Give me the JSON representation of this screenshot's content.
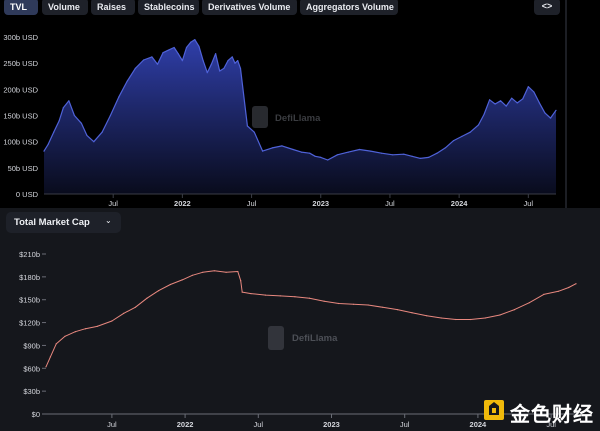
{
  "tabs": [
    {
      "label": "TVL",
      "active": true
    },
    {
      "label": "Volume",
      "active": false
    },
    {
      "label": "Raises",
      "active": false
    },
    {
      "label": "Stablecoins",
      "active": false
    },
    {
      "label": "Derivatives Volume",
      "active": false
    },
    {
      "label": "Aggregators Volume",
      "active": false
    }
  ],
  "embed_label": "<>",
  "dropdown": {
    "label": "Total Market Cap",
    "icon": "chevron-down-icon"
  },
  "watermark": "DefiLlama",
  "brand_watermark": "金色财经",
  "colors": {
    "tvl_line": "#4f62d8",
    "tvl_fill_top": "#2a3a9e",
    "mcap_line": "#e8887f",
    "axis_text": "#d4d6dc",
    "top_bg": "#000000",
    "bottom_bg": "#15171c"
  },
  "chart_data": [
    {
      "type": "area",
      "ylim": [
        0,
        300
      ],
      "yticks": [
        0,
        50,
        100,
        150,
        200,
        250,
        300
      ],
      "ytick_labels": [
        "0 USD",
        "50b USD",
        "100b USD",
        "150b USD",
        "200b USD",
        "250b USD",
        "300b USD"
      ],
      "xlim": [
        2021.0,
        2024.7
      ],
      "xticks": [
        2021.5,
        2022.0,
        2022.5,
        2023.0,
        2023.5,
        2024.0,
        2024.5
      ],
      "xtick_labels": [
        "Jul",
        "2022",
        "Jul",
        "2023",
        "Jul",
        "2024",
        "Jul"
      ],
      "x": [
        2021.0,
        2021.03,
        2021.07,
        2021.11,
        2021.14,
        2021.18,
        2021.22,
        2021.27,
        2021.31,
        2021.36,
        2021.42,
        2021.48,
        2021.54,
        2021.6,
        2021.66,
        2021.72,
        2021.78,
        2021.82,
        2021.86,
        2021.9,
        2021.94,
        2021.97,
        2022.0,
        2022.03,
        2022.06,
        2022.09,
        2022.12,
        2022.15,
        2022.18,
        2022.21,
        2022.24,
        2022.27,
        2022.3,
        2022.33,
        2022.36,
        2022.38,
        2022.4,
        2022.42,
        2022.47,
        2022.52,
        2022.58,
        2022.65,
        2022.72,
        2022.8,
        2022.86,
        2022.92,
        2022.96,
        2023.0,
        2023.05,
        2023.12,
        2023.2,
        2023.28,
        2023.36,
        2023.44,
        2023.52,
        2023.6,
        2023.66,
        2023.72,
        2023.78,
        2023.84,
        2023.9,
        2023.96,
        2024.02,
        2024.08,
        2024.14,
        2024.18,
        2024.22,
        2024.26,
        2024.3,
        2024.34,
        2024.38,
        2024.42,
        2024.46,
        2024.5,
        2024.54,
        2024.58,
        2024.62,
        2024.66,
        2024.7
      ],
      "series": [
        {
          "values": [
            82,
            95,
            118,
            140,
            165,
            178,
            150,
            135,
            112,
            100,
            118,
            150,
            185,
            215,
            240,
            256,
            262,
            248,
            270,
            275,
            280,
            268,
            255,
            280,
            290,
            295,
            282,
            255,
            232,
            248,
            268,
            235,
            240,
            255,
            262,
            250,
            255,
            240,
            130,
            118,
            82,
            88,
            92,
            85,
            80,
            78,
            72,
            70,
            65,
            75,
            80,
            85,
            82,
            78,
            75,
            76,
            72,
            68,
            70,
            78,
            88,
            102,
            110,
            118,
            132,
            152,
            180,
            172,
            178,
            168,
            183,
            174,
            182,
            205,
            195,
            174,
            155,
            145,
            160
          ]
        }
      ]
    },
    {
      "type": "line",
      "ylim": [
        0,
        210
      ],
      "yticks": [
        0,
        30,
        60,
        90,
        120,
        150,
        180,
        210
      ],
      "ytick_labels": [
        "$0",
        "$30b",
        "$60b",
        "$90b",
        "$120b",
        "$150b",
        "$180b",
        "$210b"
      ],
      "xlim": [
        2021.05,
        2024.67
      ],
      "xticks": [
        2021.5,
        2022.0,
        2022.5,
        2023.0,
        2023.5,
        2024.0,
        2024.5
      ],
      "xtick_labels": [
        "Jul",
        "2022",
        "Jul",
        "2023",
        "Jul",
        "2024",
        "Jul"
      ],
      "x": [
        2021.05,
        2021.08,
        2021.12,
        2021.18,
        2021.25,
        2021.32,
        2021.4,
        2021.5,
        2021.58,
        2021.66,
        2021.74,
        2021.82,
        2021.9,
        2021.98,
        2022.05,
        2022.12,
        2022.2,
        2022.28,
        2022.36,
        2022.38,
        2022.39,
        2022.45,
        2022.55,
        2022.65,
        2022.75,
        2022.85,
        2022.95,
        2023.05,
        2023.15,
        2023.25,
        2023.35,
        2023.45,
        2023.55,
        2023.65,
        2023.75,
        2023.85,
        2023.95,
        2024.05,
        2024.15,
        2024.25,
        2024.35,
        2024.45,
        2024.55,
        2024.62,
        2024.67
      ],
      "series": [
        {
          "values": [
            62,
            75,
            92,
            102,
            108,
            112,
            115,
            122,
            132,
            140,
            152,
            162,
            170,
            176,
            182,
            186,
            188,
            186,
            187,
            175,
            160,
            158,
            156,
            155,
            154,
            152,
            148,
            145,
            144,
            143,
            140,
            137,
            133,
            129,
            126,
            124,
            124,
            126,
            130,
            137,
            146,
            157,
            161,
            166,
            171
          ]
        }
      ]
    }
  ]
}
